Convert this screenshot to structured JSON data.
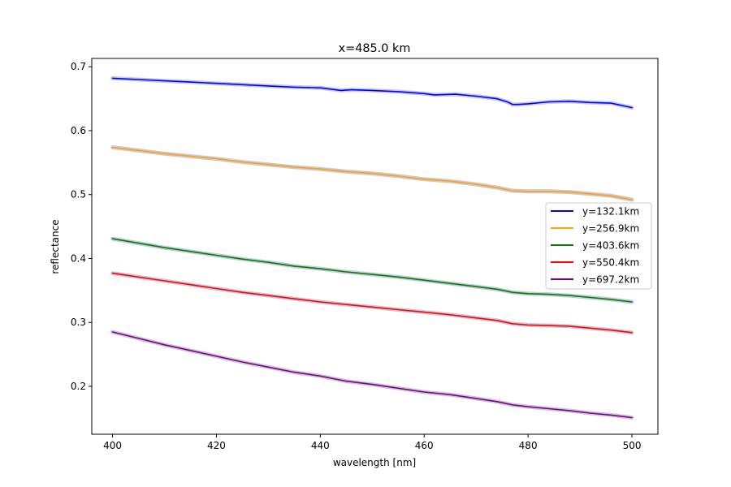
{
  "chart_data": {
    "type": "line",
    "title": "x=485.0 km",
    "xlabel": "wavelength [nm]",
    "ylabel": "reflectance",
    "xlim": [
      396,
      505
    ],
    "ylim": [
      0.125,
      0.713
    ],
    "xticks": [
      400,
      420,
      440,
      460,
      480,
      500
    ],
    "yticks": [
      0.2,
      0.3,
      0.4,
      0.5,
      0.6,
      0.7
    ],
    "xtick_labels": [
      "400",
      "420",
      "440",
      "460",
      "480",
      "500"
    ],
    "ytick_labels": [
      "0.2",
      "0.3",
      "0.4",
      "0.5",
      "0.6",
      "0.7"
    ],
    "grid": false,
    "legend_position": "center-right",
    "band_color": "#c0c0d8",
    "series": [
      {
        "name": "y=132.1km",
        "color": "#0000ff",
        "x": [
          400,
          405,
          410,
          415,
          420,
          425,
          430,
          435,
          440,
          442,
          444,
          446,
          450,
          455,
          460,
          462,
          466,
          470,
          474,
          476,
          477,
          478,
          480,
          484,
          488,
          492,
          496,
          500
        ],
        "y": [
          0.682,
          0.68,
          0.678,
          0.676,
          0.674,
          0.672,
          0.67,
          0.668,
          0.667,
          0.665,
          0.663,
          0.664,
          0.663,
          0.661,
          0.658,
          0.656,
          0.657,
          0.654,
          0.65,
          0.645,
          0.641,
          0.641,
          0.642,
          0.645,
          0.646,
          0.644,
          0.643,
          0.636
        ]
      },
      {
        "name": "y=256.9km",
        "color": "#ffa500",
        "x": [
          400,
          405,
          410,
          415,
          420,
          425,
          430,
          435,
          440,
          445,
          450,
          455,
          460,
          465,
          470,
          474,
          477,
          480,
          484,
          488,
          492,
          496,
          500
        ],
        "y": [
          0.574,
          0.569,
          0.564,
          0.56,
          0.556,
          0.551,
          0.547,
          0.543,
          0.54,
          0.536,
          0.533,
          0.529,
          0.524,
          0.521,
          0.516,
          0.511,
          0.506,
          0.505,
          0.505,
          0.504,
          0.501,
          0.498,
          0.492
        ]
      },
      {
        "name": "y=403.6km",
        "color": "#008000",
        "x": [
          400,
          405,
          410,
          415,
          420,
          425,
          430,
          435,
          440,
          445,
          450,
          455,
          460,
          465,
          470,
          474,
          477,
          480,
          484,
          488,
          492,
          496,
          500
        ],
        "y": [
          0.431,
          0.424,
          0.417,
          0.411,
          0.405,
          0.399,
          0.394,
          0.388,
          0.384,
          0.379,
          0.375,
          0.371,
          0.366,
          0.361,
          0.356,
          0.352,
          0.347,
          0.345,
          0.344,
          0.342,
          0.339,
          0.336,
          0.332
        ]
      },
      {
        "name": "y=550.4km",
        "color": "#ff0000",
        "x": [
          400,
          405,
          410,
          415,
          420,
          425,
          430,
          435,
          440,
          445,
          450,
          455,
          460,
          465,
          470,
          474,
          477,
          480,
          484,
          488,
          492,
          496,
          500
        ],
        "y": [
          0.377,
          0.371,
          0.365,
          0.359,
          0.353,
          0.347,
          0.342,
          0.337,
          0.332,
          0.328,
          0.324,
          0.32,
          0.316,
          0.312,
          0.307,
          0.303,
          0.298,
          0.296,
          0.295,
          0.294,
          0.291,
          0.288,
          0.284
        ]
      },
      {
        "name": "y=697.2km",
        "color": "#800080",
        "x": [
          400,
          405,
          410,
          415,
          420,
          425,
          430,
          435,
          440,
          445,
          450,
          455,
          460,
          465,
          470,
          474,
          477,
          480,
          484,
          488,
          492,
          496,
          500
        ],
        "y": [
          0.285,
          0.275,
          0.265,
          0.256,
          0.247,
          0.238,
          0.23,
          0.222,
          0.216,
          0.208,
          0.203,
          0.197,
          0.191,
          0.187,
          0.181,
          0.176,
          0.171,
          0.168,
          0.165,
          0.162,
          0.158,
          0.155,
          0.151
        ]
      }
    ]
  }
}
